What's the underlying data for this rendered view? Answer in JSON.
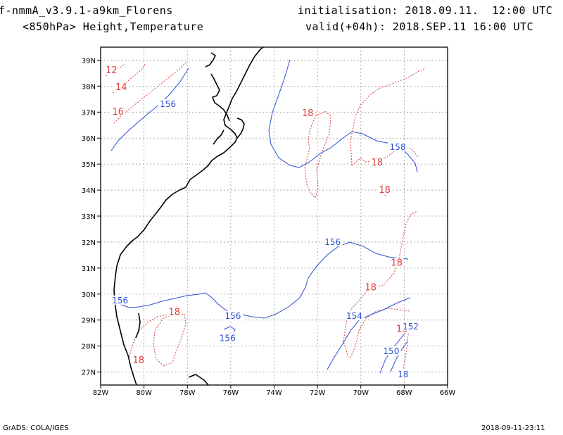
{
  "header": {
    "model_name": "f-nmmA_v3.9.1-a9km_Florens",
    "level_fields": "<850hPa> Height,Temperature",
    "init_text": "initialisation: 2018.09.11.  12:00 UTC",
    "valid_text": "valid(+04h): 2018.SEP.11 16:00 UTC"
  },
  "footer": {
    "credit": "GrADS: COLA/IGES",
    "timestamp": "2018-09-11-23:11"
  },
  "colors": {
    "temperature": "#e03c3c",
    "height": "#2a4fd6",
    "coastline": "#000000",
    "grid": "#9a9a9a"
  },
  "map": {
    "lon_ticks": [
      "82W",
      "80W",
      "78W",
      "76W",
      "74W",
      "72W",
      "70W",
      "68W",
      "66W"
    ],
    "lat_ticks": [
      "39N",
      "38N",
      "37N",
      "36N",
      "35N",
      "34N",
      "33N",
      "32N",
      "31N",
      "30N",
      "29N",
      "28N",
      "27N"
    ],
    "temperature_labels": [
      {
        "text": "12",
        "lon": -81.5,
        "lat": 38.55
      },
      {
        "text": "14",
        "lon": -81.05,
        "lat": 37.9
      },
      {
        "text": "16",
        "lon": -81.2,
        "lat": 36.95
      },
      {
        "text": "18",
        "lon": -72.45,
        "lat": 36.9
      },
      {
        "text": "18",
        "lon": -69.25,
        "lat": 35.0
      },
      {
        "text": "18",
        "lon": -68.9,
        "lat": 33.95
      },
      {
        "text": "18",
        "lon": -68.35,
        "lat": 31.15
      },
      {
        "text": "18",
        "lon": -69.55,
        "lat": 30.2
      },
      {
        "text": "18",
        "lon": -78.6,
        "lat": 29.25
      },
      {
        "text": "18",
        "lon": -80.25,
        "lat": 27.4
      },
      {
        "text": "18",
        "lon": -68.1,
        "lat": 28.6
      }
    ],
    "height_labels": [
      {
        "text": "156",
        "lon": -78.9,
        "lat": 37.25
      },
      {
        "text": "158",
        "lon": -68.3,
        "lat": 35.6
      },
      {
        "text": "156",
        "lon": -71.3,
        "lat": 31.95
      },
      {
        "text": "156",
        "lon": -81.1,
        "lat": 29.7
      },
      {
        "text": "156",
        "lon": -75.9,
        "lat": 29.1
      },
      {
        "text": "156",
        "lon": -76.15,
        "lat": 28.25
      },
      {
        "text": "154",
        "lon": -70.3,
        "lat": 29.1
      },
      {
        "text": "152",
        "lon": -67.7,
        "lat": 28.7
      },
      {
        "text": "150",
        "lon": -68.6,
        "lat": 27.75
      },
      {
        "text": "18",
        "lon": -68.05,
        "lat": 26.85
      }
    ]
  }
}
